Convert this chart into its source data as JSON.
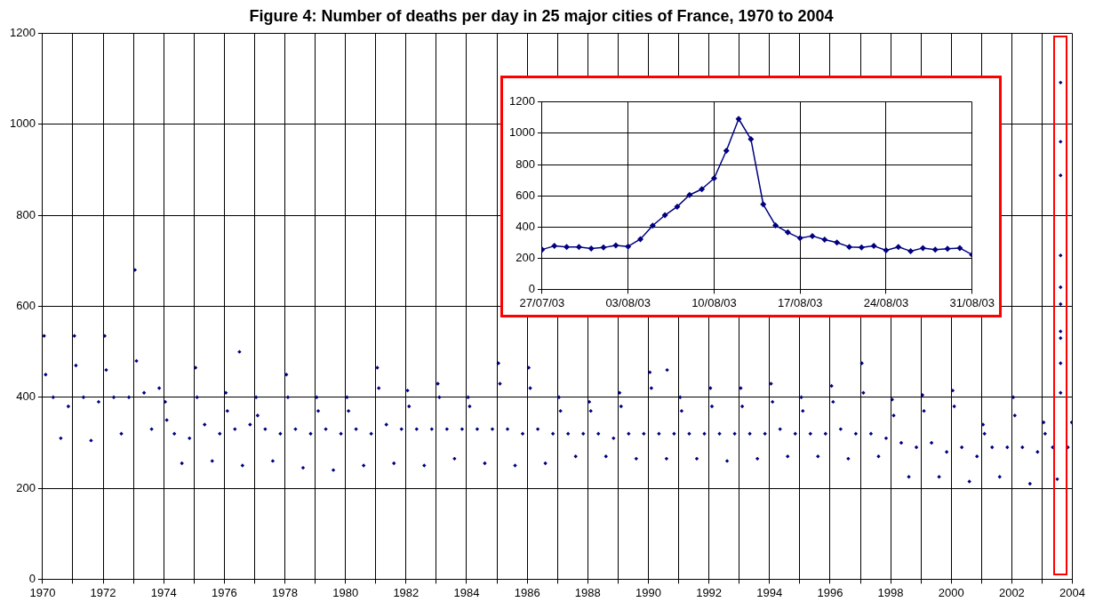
{
  "chart_data": [
    {
      "type": "scatter",
      "title": "Figure 4: Number of deaths per day in 25 major cities of France, 1970 to 2004",
      "color": "#000080",
      "marker": "diamond",
      "grid": true,
      "x": [
        1970.05,
        1970.1,
        1970.35,
        1970.6,
        1970.85,
        1971.05,
        1971.1,
        1971.35,
        1971.6,
        1971.85,
        1972.05,
        1972.1,
        1972.35,
        1972.6,
        1972.85,
        1973.05,
        1973.1,
        1973.35,
        1973.6,
        1973.85,
        1974.05,
        1974.1,
        1974.35,
        1974.6,
        1974.85,
        1975.05,
        1975.1,
        1975.35,
        1975.6,
        1975.85,
        1976.05,
        1976.1,
        1976.35,
        1976.5,
        1976.6,
        1976.85,
        1977.05,
        1977.1,
        1977.35,
        1977.6,
        1977.85,
        1978.05,
        1978.1,
        1978.35,
        1978.6,
        1978.85,
        1979.05,
        1979.1,
        1979.35,
        1979.6,
        1979.85,
        1980.05,
        1980.1,
        1980.35,
        1980.6,
        1980.85,
        1981.05,
        1981.1,
        1981.35,
        1981.6,
        1981.85,
        1982.05,
        1982.1,
        1982.35,
        1982.6,
        1982.85,
        1983.05,
        1983.1,
        1983.35,
        1983.6,
        1983.85,
        1984.05,
        1984.1,
        1984.35,
        1984.6,
        1984.85,
        1985.05,
        1985.1,
        1985.35,
        1985.6,
        1985.85,
        1986.05,
        1986.1,
        1986.35,
        1986.6,
        1986.85,
        1987.05,
        1987.1,
        1987.35,
        1987.6,
        1987.85,
        1988.05,
        1988.1,
        1988.35,
        1988.6,
        1988.85,
        1989.05,
        1989.1,
        1989.35,
        1989.6,
        1989.85,
        1990.05,
        1990.1,
        1990.35,
        1990.6,
        1990.62,
        1990.85,
        1991.05,
        1991.1,
        1991.35,
        1991.6,
        1991.85,
        1992.05,
        1992.1,
        1992.35,
        1992.6,
        1992.85,
        1993.05,
        1993.1,
        1993.35,
        1993.6,
        1993.85,
        1994.05,
        1994.1,
        1994.35,
        1994.6,
        1994.85,
        1995.05,
        1995.1,
        1995.35,
        1995.6,
        1995.85,
        1996.05,
        1996.1,
        1996.35,
        1996.6,
        1996.85,
        1997.05,
        1997.1,
        1997.35,
        1997.6,
        1997.85,
        1998.05,
        1998.1,
        1998.35,
        1998.6,
        1998.85,
        1999.05,
        1999.1,
        1999.35,
        1999.6,
        1999.85,
        2000.05,
        2000.1,
        2000.35,
        2000.6,
        2000.85,
        2001.05,
        2001.1,
        2001.35,
        2001.6,
        2001.85,
        2002.05,
        2002.1,
        2002.35,
        2002.6,
        2002.85,
        2003.05,
        2003.1,
        2003.35,
        2003.5,
        2003.61,
        2003.61,
        2003.61,
        2003.61,
        2003.61,
        2003.61,
        2003.61,
        2003.61,
        2003.61,
        2003.61,
        2003.85,
        2003.98
      ],
      "values": [
        535,
        450,
        400,
        310,
        380,
        535,
        470,
        400,
        305,
        390,
        535,
        460,
        400,
        320,
        400,
        680,
        480,
        410,
        330,
        420,
        390,
        350,
        320,
        255,
        310,
        465,
        400,
        340,
        260,
        320,
        410,
        370,
        330,
        500,
        250,
        340,
        400,
        360,
        330,
        260,
        320,
        450,
        400,
        330,
        245,
        320,
        400,
        370,
        330,
        240,
        320,
        400,
        370,
        330,
        250,
        320,
        465,
        420,
        340,
        255,
        330,
        415,
        380,
        330,
        250,
        330,
        430,
        400,
        330,
        265,
        330,
        400,
        380,
        330,
        255,
        330,
        475,
        430,
        330,
        250,
        320,
        465,
        420,
        330,
        255,
        320,
        400,
        370,
        320,
        270,
        320,
        390,
        370,
        320,
        270,
        310,
        410,
        380,
        320,
        265,
        320,
        455,
        420,
        320,
        265,
        460,
        320,
        400,
        370,
        320,
        265,
        320,
        420,
        380,
        320,
        260,
        320,
        420,
        380,
        320,
        265,
        320,
        430,
        390,
        330,
        270,
        320,
        400,
        370,
        320,
        270,
        320,
        425,
        390,
        330,
        265,
        320,
        475,
        410,
        320,
        270,
        310,
        395,
        360,
        300,
        225,
        290,
        405,
        370,
        300,
        225,
        280,
        415,
        380,
        290,
        215,
        270,
        340,
        320,
        290,
        225,
        290,
        400,
        360,
        290,
        210,
        280,
        345,
        320,
        290,
        220,
        1092,
        962,
        888,
        712,
        642,
        605,
        545,
        530,
        475,
        410,
        290,
        345
      ],
      "xlim": [
        1970,
        2004
      ],
      "xticks": [
        1970,
        {
          "value": 1971,
          "label": null
        },
        1972,
        {
          "value": 1973,
          "label": null
        },
        1974,
        {
          "value": 1975,
          "label": null
        },
        1976,
        {
          "value": 1977,
          "label": null
        },
        1978,
        {
          "value": 1979,
          "label": null
        },
        1980,
        {
          "value": 1981,
          "label": null
        },
        1982,
        {
          "value": 1983,
          "label": null
        },
        1984,
        {
          "value": 1985,
          "label": null
        },
        1986,
        {
          "value": 1987,
          "label": null
        },
        1988,
        {
          "value": 1989,
          "label": null
        },
        1990,
        {
          "value": 1991,
          "label": null
        },
        1992,
        {
          "value": 1993,
          "label": null
        },
        1994,
        {
          "value": 1995,
          "label": null
        },
        1996,
        {
          "value": 1997,
          "label": null
        },
        1998,
        {
          "value": 1999,
          "label": null
        },
        2000,
        {
          "value": 2001,
          "label": null
        },
        2002,
        {
          "value": 2003,
          "label": null
        },
        2004
      ],
      "ylim": [
        0,
        1200
      ],
      "yticks": [
        0,
        200,
        400,
        600,
        800,
        1000,
        1200
      ]
    },
    {
      "type": "line",
      "color": "#000080",
      "marker": "diamond",
      "line_style": "solid",
      "grid": true,
      "x": [
        "--07-27",
        "--07-28",
        "--07-29",
        "--07-30",
        "--07-31",
        "--08-01",
        "--08-02",
        "--08-03",
        "--08-04",
        "--08-05",
        "--08-06",
        "--08-07",
        "--08-08",
        "--08-09",
        "--08-10",
        "--08-11",
        "--08-12",
        "--08-13",
        "--08-14",
        "--08-15",
        "--08-16",
        "--08-17",
        "--08-18",
        "--08-19",
        "--08-20",
        "--08-21",
        "--08-22",
        "--08-23",
        "--08-24",
        "--08-25",
        "--08-26",
        "--08-27",
        "--08-28",
        "--08-29",
        "--08-30",
        "--08-31"
      ],
      "values": [
        255,
        278,
        272,
        272,
        262,
        268,
        282,
        275,
        322,
        408,
        475,
        530,
        605,
        642,
        712,
        888,
        1092,
        962,
        545,
        410,
        365,
        328,
        342,
        318,
        300,
        272,
        268,
        278,
        250,
        272,
        245,
        265,
        255,
        260,
        265,
        222
      ],
      "xlim": [
        "--07-27",
        "--08-31"
      ],
      "xticks": [
        {
          "value": "--07-27",
          "label": "27/07/03"
        },
        {
          "value": "--08-03",
          "label": "03/08/03"
        },
        {
          "value": "--08-10",
          "label": "10/08/03"
        },
        {
          "value": "--08-17",
          "label": "17/08/03"
        },
        {
          "value": "--08-24",
          "label": "24/08/03"
        },
        {
          "value": "--08-31",
          "label": "31/08/03"
        }
      ],
      "ylim": [
        0,
        1200
      ],
      "yticks": [
        0,
        200,
        400,
        600,
        800,
        1000,
        1200
      ]
    }
  ]
}
